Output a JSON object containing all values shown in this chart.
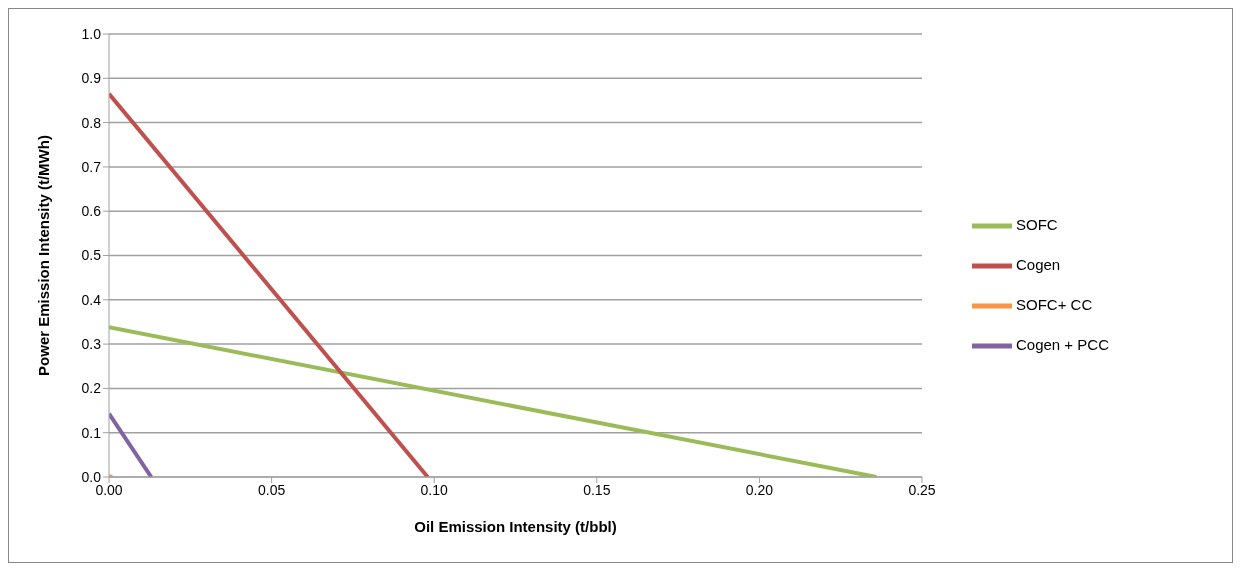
{
  "chart_data": {
    "type": "line",
    "xlabel": "Oil Emission Intensity (t/bbl)",
    "ylabel": "Power Emission Intensity (t/MWh)",
    "xlim": [
      0,
      0.25
    ],
    "xticks": [
      {
        "value": 0,
        "label": "0.00"
      },
      {
        "value": 0.05,
        "label": "0.05"
      },
      {
        "value": 0.1,
        "label": "0.10"
      },
      {
        "value": 0.15,
        "label": "0.15"
      },
      {
        "value": 0.2,
        "label": "0.20"
      },
      {
        "value": 0.25,
        "label": "0.25"
      }
    ],
    "ylim": [
      0,
      1
    ],
    "yticks": [
      {
        "value": 0,
        "label": "0.0"
      },
      {
        "value": 0.1,
        "label": "0.1"
      },
      {
        "value": 0.2,
        "label": "0.2"
      },
      {
        "value": 0.3,
        "label": "0.3"
      },
      {
        "value": 0.4,
        "label": "0.4"
      },
      {
        "value": 0.5,
        "label": "0.5"
      },
      {
        "value": 0.6,
        "label": "0.6"
      },
      {
        "value": 0.7,
        "label": "0.7"
      },
      {
        "value": 0.8,
        "label": "0.8"
      },
      {
        "value": 0.9,
        "label": "0.9"
      },
      {
        "value": 1,
        "label": "1.0"
      }
    ],
    "grid": "y",
    "legend": "right",
    "marker": "none",
    "series": [
      {
        "name": "SOFC",
        "color": "#9bbb59",
        "x": [
          0,
          0.236
        ],
        "values": [
          0.338,
          0
        ]
      },
      {
        "name": "Cogen",
        "color": "#c0504d",
        "x": [
          0,
          0.098
        ],
        "values": [
          0.865,
          0
        ]
      },
      {
        "name": "SOFC+ CC",
        "color": "#f79646",
        "x": [
          0,
          0.001
        ],
        "values": [
          0.002,
          0
        ]
      },
      {
        "name": "Cogen + PCC",
        "color": "#8064a2",
        "x": [
          0,
          0.013
        ],
        "values": [
          0.143,
          0
        ]
      }
    ]
  }
}
